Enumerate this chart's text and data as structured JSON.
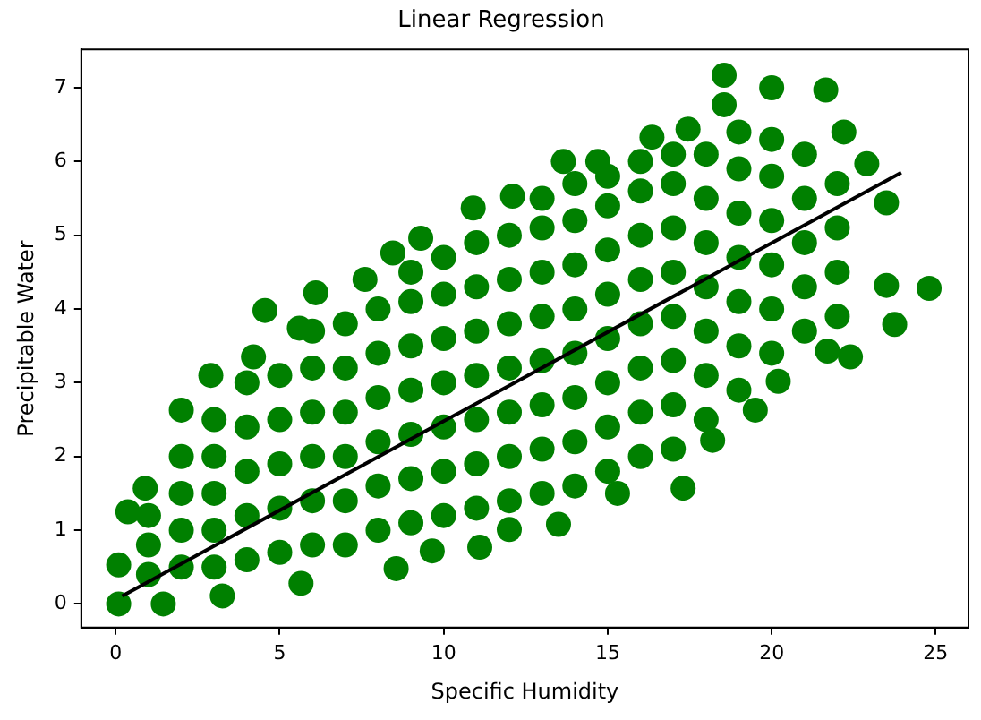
{
  "chart_data": {
    "type": "scatter",
    "title": "Linear Regression",
    "xlabel": "Specific Humidity",
    "ylabel": "Precipitable Water",
    "legend": false,
    "grid": false,
    "xlim": [
      -1.05,
      26
    ],
    "ylim": [
      -0.32,
      7.52
    ],
    "xticks": [
      0,
      5,
      10,
      15,
      20,
      25
    ],
    "yticks": [
      0,
      1,
      2,
      3,
      4,
      5,
      6,
      7
    ],
    "series": [
      {
        "color": "#008000",
        "marker": "circle",
        "x": [
          0.09,
          0.37,
          0.9,
          2.0,
          2.9,
          4.2,
          4.55,
          5.6,
          6.1,
          7.6,
          8.45,
          9.3,
          10.9,
          12.1,
          13.65,
          14.7,
          16.35,
          17.45,
          18.55,
          18.55,
          20.0,
          21.65,
          22.2,
          22.9,
          23.5,
          24.8,
          23.5,
          23.75,
          22.4,
          21.7,
          20.2,
          19.5,
          18.2,
          17.3,
          15.3,
          13.5,
          12.0,
          11.1,
          9.65,
          8.55,
          5.65,
          3.25,
          1.45,
          0.09,
          1,
          1,
          1,
          2,
          2,
          2,
          2,
          3,
          3,
          3,
          3,
          3,
          4,
          4,
          4,
          4,
          4,
          5,
          5,
          5,
          5,
          5,
          6,
          6,
          6,
          6,
          6,
          6,
          7,
          7,
          7,
          7,
          7,
          7,
          8,
          8,
          8,
          8,
          8,
          8,
          9,
          9,
          9,
          9,
          9,
          9,
          9,
          10,
          10,
          10,
          10,
          10,
          10,
          10,
          11,
          11,
          11,
          11,
          11,
          11,
          11,
          12,
          12,
          12,
          12,
          12,
          12,
          12,
          13,
          13,
          13,
          13,
          13,
          13,
          13,
          13,
          14,
          14,
          14,
          14,
          14,
          14,
          14,
          14,
          15,
          15,
          15,
          15,
          15,
          15,
          15,
          15,
          16,
          16,
          16,
          16,
          16,
          16,
          16,
          16,
          17,
          17,
          17,
          17,
          17,
          17,
          17,
          17,
          18,
          18,
          18,
          18,
          18,
          18,
          18,
          19,
          19,
          19,
          19,
          19,
          19,
          19,
          20,
          20,
          20,
          20,
          20,
          20,
          21,
          21,
          21,
          21,
          21,
          22,
          22,
          22,
          22
        ],
        "values": [
          0.53,
          1.25,
          1.57,
          2.63,
          3.1,
          3.35,
          3.98,
          3.74,
          4.22,
          4.4,
          4.76,
          4.96,
          5.37,
          5.53,
          6.0,
          6.0,
          6.33,
          6.44,
          7.17,
          6.77,
          7.0,
          6.97,
          6.4,
          5.97,
          5.44,
          4.28,
          4.32,
          3.79,
          3.35,
          3.43,
          3.02,
          2.63,
          2.22,
          1.57,
          1.5,
          1.08,
          1.01,
          0.77,
          0.72,
          0.48,
          0.28,
          0.11,
          0,
          0,
          0.4,
          0.8,
          1.2,
          0.5,
          1.0,
          1.5,
          2.0,
          0.5,
          1,
          1.5,
          2,
          2.5,
          0.6,
          1.2,
          1.8,
          2.4,
          3.0,
          0.7,
          1.3,
          1.9,
          2.5,
          3.1,
          0.8,
          1.4,
          2,
          2.6,
          3.2,
          3.7,
          0.8,
          1.4,
          2,
          2.6,
          3.2,
          3.8,
          1,
          1.6,
          2.2,
          2.8,
          3.4,
          4,
          1.1,
          1.7,
          2.3,
          2.9,
          3.5,
          4.1,
          4.5,
          1.2,
          1.8,
          2.4,
          3,
          3.6,
          4.2,
          4.7,
          1.3,
          1.9,
          2.5,
          3.1,
          3.7,
          4.3,
          4.9,
          1.4,
          2,
          2.6,
          3.2,
          3.8,
          4.4,
          5,
          1.5,
          2.1,
          2.7,
          3.3,
          3.9,
          4.5,
          5.1,
          5.5,
          1.6,
          2.2,
          2.8,
          3.4,
          4,
          4.6,
          5.2,
          5.7,
          1.8,
          2.4,
          3,
          3.6,
          4.2,
          4.8,
          5.4,
          5.8,
          2,
          2.6,
          3.2,
          3.8,
          4.4,
          5,
          5.6,
          6,
          2.1,
          2.7,
          3.3,
          3.9,
          4.5,
          5.1,
          5.7,
          6.1,
          2.5,
          3.1,
          3.7,
          4.3,
          4.9,
          5.5,
          6.1,
          2.9,
          3.5,
          4.1,
          4.7,
          5.3,
          5.9,
          6.4,
          3.4,
          4,
          4.6,
          5.2,
          5.8,
          6.3,
          3.7,
          4.3,
          4.9,
          5.5,
          6.1,
          3.9,
          4.5,
          5.1,
          5.7
        ]
      },
      {
        "type": "line",
        "color": "#000000",
        "marker": "none",
        "x": [
          0.2,
          23.95
        ],
        "values": [
          0.11,
          5.85
        ]
      }
    ]
  }
}
